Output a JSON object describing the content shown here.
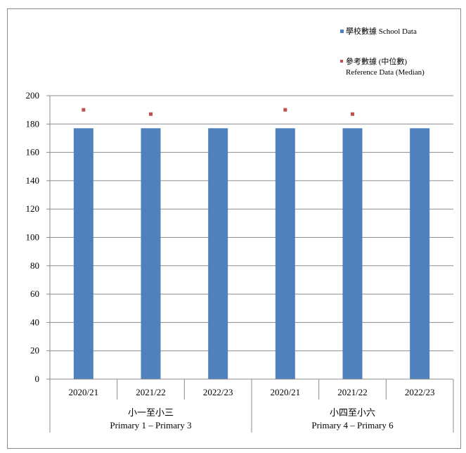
{
  "chart_data": {
    "type": "bar",
    "title": "",
    "xlabel": "",
    "ylabel": "",
    "ylim": [
      0,
      200
    ],
    "yticks": [
      0,
      20,
      40,
      60,
      80,
      100,
      120,
      140,
      160,
      180,
      200
    ],
    "grid": true,
    "legend_position": "top-right",
    "categories": [
      "2020/21",
      "2021/22",
      "2022/23",
      "2020/21",
      "2021/22",
      "2022/23"
    ],
    "groups": [
      {
        "label_zh": "小一至小三",
        "label_en": "Primary 1 – Primary 3",
        "span": [
          0,
          2
        ]
      },
      {
        "label_zh": "小四至小六",
        "label_en": "Primary 4 – Primary 6",
        "span": [
          3,
          5
        ]
      }
    ],
    "series": [
      {
        "name": "學校數據 School Data",
        "kind": "bar",
        "color": "#4f81bd",
        "values": [
          177,
          177,
          177,
          177,
          177,
          177
        ]
      },
      {
        "name_line1": "參考數據 (中位數)",
        "name_line2": "Reference Data (Median)",
        "kind": "marker",
        "color": "#c0504d",
        "values": [
          190,
          187,
          null,
          190,
          187,
          null
        ]
      }
    ]
  }
}
